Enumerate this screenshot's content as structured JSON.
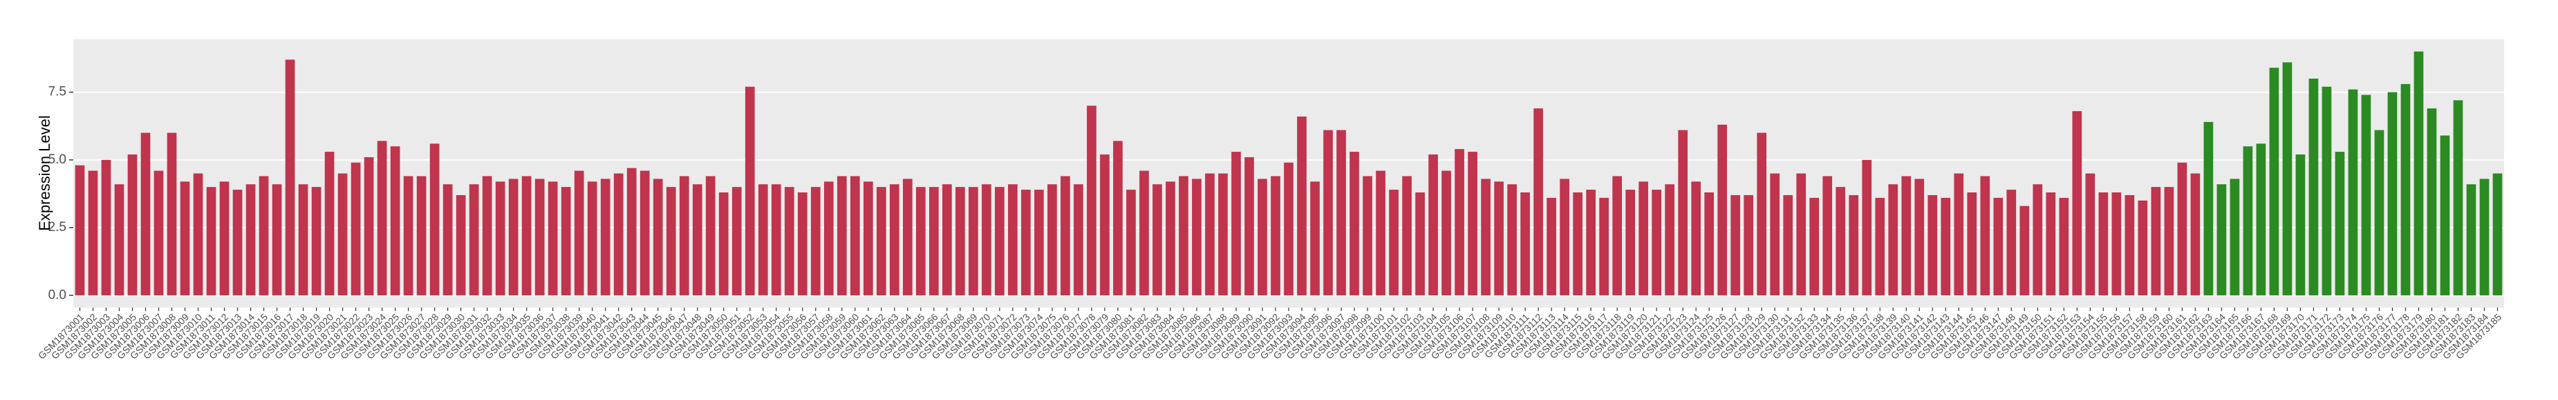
{
  "chart_data": {
    "type": "bar",
    "y_label": "Expression Level",
    "ylim": [
      -0.45,
      9.45
    ],
    "yticks": [
      {
        "value": 0,
        "label": "0.0"
      },
      2.5,
      {
        "value": 5,
        "label": "5.0"
      },
      7.5
    ],
    "grid": true,
    "categories": [
      "GSM1873001",
      "GSM1873002",
      "GSM1873003",
      "GSM1873004",
      "GSM1873005",
      "GSM1873006",
      "GSM1873007",
      "GSM1873008",
      "GSM1873009",
      "GSM1873010",
      "GSM1873011",
      "GSM1873012",
      "GSM1873013",
      "GSM1873014",
      "GSM1873015",
      "GSM1873016",
      "GSM1873017",
      "GSM1873018",
      "GSM1873019",
      "GSM1873020",
      "GSM1873021",
      "GSM1873022",
      "GSM1873023",
      "GSM1873024",
      "GSM1873025",
      "GSM1873026",
      "GSM1873027",
      "GSM1873028",
      "GSM1873029",
      "GSM1873030",
      "GSM1873031",
      "GSM1873032",
      "GSM1873033",
      "GSM1873034",
      "GSM1873035",
      "GSM1873036",
      "GSM1873037",
      "GSM1873038",
      "GSM1873039",
      "GSM1873040",
      "GSM1873041",
      "GSM1873042",
      "GSM1873043",
      "GSM1873044",
      "GSM1873045",
      "GSM1873046",
      "GSM1873047",
      "GSM1873048",
      "GSM1873049",
      "GSM1873050",
      "GSM1873051",
      "GSM1873052",
      "GSM1873053",
      "GSM1873054",
      "GSM1873055",
      "GSM1873056",
      "GSM1873057",
      "GSM1873058",
      "GSM1873059",
      "GSM1873060",
      "GSM1873061",
      "GSM1873062",
      "GSM1873063",
      "GSM1873064",
      "GSM1873065",
      "GSM1873066",
      "GSM1873067",
      "GSM1873068",
      "GSM1873069",
      "GSM1873070",
      "GSM1873071",
      "GSM1873072",
      "GSM1873073",
      "GSM1873074",
      "GSM1873075",
      "GSM1873076",
      "GSM1873077",
      "GSM1873078",
      "GSM1873079",
      "GSM1873080",
      "GSM1873081",
      "GSM1873082",
      "GSM1873083",
      "GSM1873084",
      "GSM1873085",
      "GSM1873086",
      "GSM1873087",
      "GSM1873088",
      "GSM1873089",
      "GSM1873090",
      "GSM1873091",
      "GSM1873092",
      "GSM1873093",
      "GSM1873094",
      "GSM1873095",
      "GSM1873096",
      "GSM1873097",
      "GSM1873098",
      "GSM1873099",
      "GSM1873100",
      "GSM1873101",
      "GSM1873102",
      "GSM1873103",
      "GSM1873104",
      "GSM1873105",
      "GSM1873106",
      "GSM1873107",
      "GSM1873108",
      "GSM1873109",
      "GSM1873110",
      "GSM1873111",
      "GSM1873112",
      "GSM1873113",
      "GSM1873114",
      "GSM1873115",
      "GSM1873116",
      "GSM1873117",
      "GSM1873118",
      "GSM1873119",
      "GSM1873120",
      "GSM1873121",
      "GSM1873122",
      "GSM1873123",
      "GSM1873124",
      "GSM1873125",
      "GSM1873126",
      "GSM1873127",
      "GSM1873128",
      "GSM1873129",
      "GSM1873130",
      "GSM1873131",
      "GSM1873132",
      "GSM1873133",
      "GSM1873134",
      "GSM1873135",
      "GSM1873136",
      "GSM1873137",
      "GSM1873138",
      "GSM1873139",
      "GSM1873140",
      "GSM1873141",
      "GSM1873142",
      "GSM1873143",
      "GSM1873144",
      "GSM1873145",
      "GSM1873146",
      "GSM1873147",
      "GSM1873148",
      "GSM1873149",
      "GSM1873150",
      "GSM1873151",
      "GSM1873152",
      "GSM1873153",
      "GSM1873154",
      "GSM1873155",
      "GSM1873156",
      "GSM1873157",
      "GSM1873158",
      "GSM1873159",
      "GSM1873160",
      "GSM1873161",
      "GSM1873162",
      "GSM1873163",
      "GSM1873164",
      "GSM1873165",
      "GSM1873166",
      "GSM1873167",
      "GSM1873168",
      "GSM1873169",
      "GSM1873170",
      "GSM1873171",
      "GSM1873172",
      "GSM1873173",
      "GSM1873174",
      "GSM1873175",
      "GSM1873176",
      "GSM1873177",
      "GSM1873178",
      "GSM1873179",
      "GSM1873180",
      "GSM1873181",
      "GSM1873182",
      "GSM1873183",
      "GSM1873184",
      "GSM1873185"
    ],
    "values": [
      4.8,
      4.6,
      5.0,
      4.1,
      5.2,
      6.0,
      4.6,
      6.0,
      4.2,
      4.5,
      4.0,
      4.2,
      3.9,
      4.1,
      4.4,
      4.1,
      8.7,
      4.1,
      4.0,
      5.3,
      4.5,
      4.9,
      5.1,
      5.7,
      5.5,
      4.4,
      4.4,
      5.6,
      4.1,
      3.7,
      4.1,
      4.4,
      4.2,
      4.3,
      4.4,
      4.3,
      4.2,
      4.0,
      4.6,
      4.2,
      4.3,
      4.5,
      4.7,
      4.6,
      4.3,
      4.0,
      4.4,
      4.1,
      4.4,
      3.8,
      4.0,
      7.7,
      4.1,
      4.1,
      4.0,
      3.8,
      4.0,
      4.2,
      4.4,
      4.4,
      4.2,
      4.0,
      4.1,
      4.3,
      4.0,
      4.0,
      4.1,
      4.0,
      4.0,
      4.1,
      4.0,
      4.1,
      3.9,
      3.9,
      4.1,
      4.4,
      4.1,
      7.0,
      5.2,
      5.7,
      3.9,
      4.6,
      4.1,
      4.2,
      4.4,
      4.3,
      4.5,
      4.5,
      5.3,
      5.1,
      4.3,
      4.4,
      4.9,
      6.6,
      4.2,
      6.1,
      6.1,
      5.3,
      4.4,
      4.6,
      3.9,
      4.4,
      3.8,
      5.2,
      4.6,
      5.4,
      5.3,
      4.3,
      4.2,
      4.1,
      3.8,
      6.9,
      3.6,
      4.3,
      3.8,
      3.9,
      3.6,
      4.4,
      3.9,
      4.2,
      3.9,
      4.1,
      6.1,
      4.2,
      3.8,
      6.3,
      3.7,
      3.7,
      6.0,
      4.5,
      3.7,
      4.5,
      3.6,
      4.4,
      4.0,
      3.7,
      5.0,
      3.6,
      4.1,
      4.4,
      4.3,
      3.7,
      3.6,
      4.5,
      3.8,
      4.4,
      3.6,
      3.9,
      3.3,
      4.1,
      3.8,
      3.6,
      6.8,
      4.5,
      3.8,
      3.8,
      3.7,
      3.5,
      4.0,
      4.0,
      4.9,
      4.5,
      6.4,
      4.1,
      4.3,
      5.5,
      5.6,
      8.4,
      8.6,
      5.2,
      8.0,
      7.7,
      5.3,
      7.6,
      7.4,
      6.1,
      7.5,
      7.8,
      9.0,
      6.9,
      5.9,
      7.2,
      4.1,
      4.3,
      4.5
    ],
    "colors": [
      "#c0344d",
      "#c0344d",
      "#c0344d",
      "#c0344d",
      "#c0344d",
      "#c0344d",
      "#c0344d",
      "#c0344d",
      "#c0344d",
      "#c0344d",
      "#c0344d",
      "#c0344d",
      "#c0344d",
      "#c0344d",
      "#c0344d",
      "#c0344d",
      "#c0344d",
      "#c0344d",
      "#c0344d",
      "#c0344d",
      "#c0344d",
      "#c0344d",
      "#c0344d",
      "#c0344d",
      "#c0344d",
      "#c0344d",
      "#c0344d",
      "#c0344d",
      "#c0344d",
      "#c0344d",
      "#c0344d",
      "#c0344d",
      "#c0344d",
      "#c0344d",
      "#c0344d",
      "#c0344d",
      "#c0344d",
      "#c0344d",
      "#c0344d",
      "#c0344d",
      "#c0344d",
      "#c0344d",
      "#c0344d",
      "#c0344d",
      "#c0344d",
      "#c0344d",
      "#c0344d",
      "#c0344d",
      "#c0344d",
      "#c0344d",
      "#c0344d",
      "#c0344d",
      "#c0344d",
      "#c0344d",
      "#c0344d",
      "#c0344d",
      "#c0344d",
      "#c0344d",
      "#c0344d",
      "#c0344d",
      "#c0344d",
      "#c0344d",
      "#c0344d",
      "#c0344d",
      "#c0344d",
      "#c0344d",
      "#c0344d",
      "#c0344d",
      "#c0344d",
      "#c0344d",
      "#c0344d",
      "#c0344d",
      "#c0344d",
      "#c0344d",
      "#c0344d",
      "#c0344d",
      "#c0344d",
      "#c0344d",
      "#c0344d",
      "#c0344d",
      "#c0344d",
      "#c0344d",
      "#c0344d",
      "#c0344d",
      "#c0344d",
      "#c0344d",
      "#c0344d",
      "#c0344d",
      "#c0344d",
      "#c0344d",
      "#c0344d",
      "#c0344d",
      "#c0344d",
      "#c0344d",
      "#c0344d",
      "#c0344d",
      "#c0344d",
      "#c0344d",
      "#c0344d",
      "#c0344d",
      "#c0344d",
      "#c0344d",
      "#c0344d",
      "#c0344d",
      "#c0344d",
      "#c0344d",
      "#c0344d",
      "#c0344d",
      "#c0344d",
      "#c0344d",
      "#c0344d",
      "#c0344d",
      "#c0344d",
      "#c0344d",
      "#c0344d",
      "#c0344d",
      "#c0344d",
      "#c0344d",
      "#c0344d",
      "#c0344d",
      "#c0344d",
      "#c0344d",
      "#c0344d",
      "#c0344d",
      "#c0344d",
      "#c0344d",
      "#c0344d",
      "#c0344d",
      "#c0344d",
      "#c0344d",
      "#c0344d",
      "#c0344d",
      "#c0344d",
      "#c0344d",
      "#c0344d",
      "#c0344d",
      "#c0344d",
      "#c0344d",
      "#c0344d",
      "#c0344d",
      "#c0344d",
      "#c0344d",
      "#c0344d",
      "#c0344d",
      "#c0344d",
      "#c0344d",
      "#c0344d",
      "#c0344d",
      "#c0344d",
      "#c0344d",
      "#c0344d",
      "#c0344d",
      "#c0344d",
      "#c0344d",
      "#c0344d",
      "#c0344d",
      "#c0344d",
      "#c0344d",
      "#c0344d",
      "#c0344d",
      "#c0344d",
      "#c0344d",
      "#2b8a22",
      "#2b8a22",
      "#2b8a22",
      "#2b8a22",
      "#2b8a22",
      "#2b8a22",
      "#2b8a22",
      "#2b8a22",
      "#2b8a22",
      "#2b8a22",
      "#2b8a22",
      "#2b8a22",
      "#2b8a22",
      "#2b8a22",
      "#2b8a22",
      "#2b8a22",
      "#2b8a22",
      "#2b8a22",
      "#2b8a22",
      "#2b8a22",
      "#2b8a22",
      "#2b8a22",
      "#2b8a22"
    ]
  }
}
